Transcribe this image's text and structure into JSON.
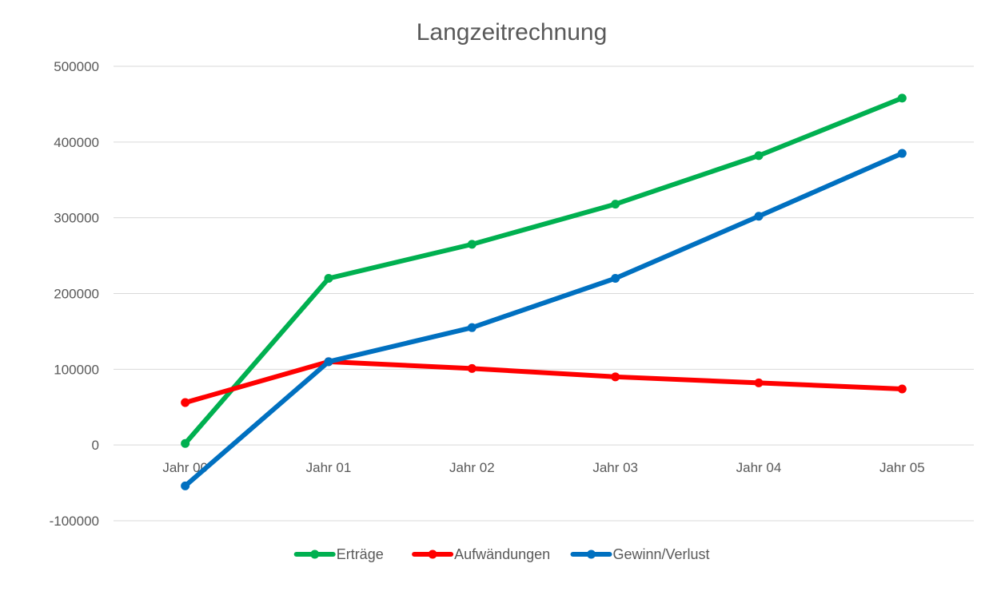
{
  "chart_data": {
    "type": "line",
    "title": "Langzeitrechnung",
    "categories": [
      "Jahr 00",
      "Jahr 01",
      "Jahr 02",
      "Jahr 03",
      "Jahr 04",
      "Jahr 05"
    ],
    "ylim": [
      -100000,
      500000
    ],
    "yticks": [
      -100000,
      0,
      100000,
      200000,
      300000,
      400000,
      500000
    ],
    "grid": true,
    "legend_position": "bottom",
    "series": [
      {
        "name": "Erträge",
        "color": "#00b050",
        "values": [
          2000,
          220000,
          265000,
          318000,
          382000,
          458000
        ]
      },
      {
        "name": "Aufwändungen",
        "color": "#ff0000",
        "values": [
          56000,
          110000,
          101000,
          90000,
          82000,
          74000
        ]
      },
      {
        "name": "Gewinn/Verlust",
        "color": "#0070c0",
        "values": [
          -54000,
          110000,
          155000,
          220000,
          302000,
          385000
        ]
      }
    ]
  }
}
